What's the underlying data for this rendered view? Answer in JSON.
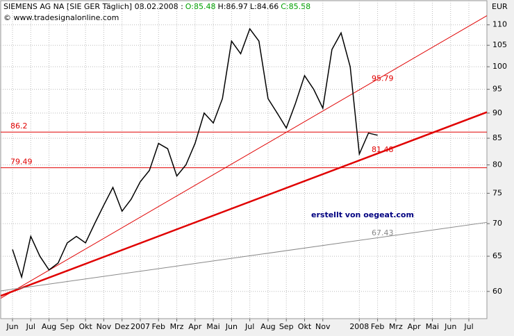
{
  "chart_data": {
    "type": "line",
    "title": "SIEMENS AG NA [SIE GER  Täglich] 08.02.2008 :",
    "ohlc": [
      "O:85.48",
      "H:86.97",
      "L:84.66",
      "C:85.58"
    ],
    "subtitle": "© www.tradesignalonline.com",
    "y_unit": "EUR",
    "annotation": "erstellt von oegeat.com",
    "categories": [
      "Jun",
      null,
      "Jul",
      null,
      "Aug",
      null,
      "Sep",
      null,
      "Okt",
      null,
      "Nov",
      null,
      "Dez",
      null,
      "2007",
      null,
      "Feb",
      null,
      "Mrz",
      null,
      "Apr",
      null,
      "Mai",
      null,
      "Jun",
      null,
      "Jul",
      null,
      "Aug",
      null,
      "Sep",
      null,
      "Okt",
      null,
      "Nov",
      null,
      null,
      null,
      "2008",
      null,
      "Feb",
      null,
      "Mrz",
      null,
      "Apr",
      null,
      "Mai",
      null,
      "Jun",
      null,
      "Jul",
      null
    ],
    "series": [
      {
        "color": "#000000",
        "values": [
          66,
          62,
          68,
          65,
          63,
          64,
          67,
          68,
          67,
          70,
          73,
          76,
          72,
          74,
          77,
          79,
          84,
          83,
          78,
          80,
          84,
          90,
          88,
          93,
          106,
          103,
          109,
          106,
          93,
          90,
          87,
          92,
          98,
          95,
          91,
          104,
          108,
          100,
          82,
          86,
          85.58,
          null,
          null,
          null,
          null,
          null,
          null,
          null,
          null,
          null,
          null,
          null
        ]
      }
    ],
    "hlines": [
      {
        "value": 86.2,
        "color": "#e00000"
      },
      {
        "value": 79.49,
        "color": "#e00000"
      }
    ],
    "trendlines": [
      {
        "from": 60,
        "to": 111,
        "value": 95.79,
        "color": "#e00000",
        "width": 1
      },
      {
        "from": 60,
        "to": 89.5,
        "value": 81.48,
        "color": "#e00000",
        "width": 2.5
      },
      {
        "from": 60.3,
        "to": 70,
        "value": 67.43,
        "color": "#888888",
        "width": 1
      }
    ],
    "log_scale": true,
    "ylim": [
      56.4,
      116.2
    ],
    "yticks": [
      60,
      65,
      70,
      75,
      80,
      85,
      90,
      95,
      100,
      105,
      110
    ],
    "grid": true
  }
}
